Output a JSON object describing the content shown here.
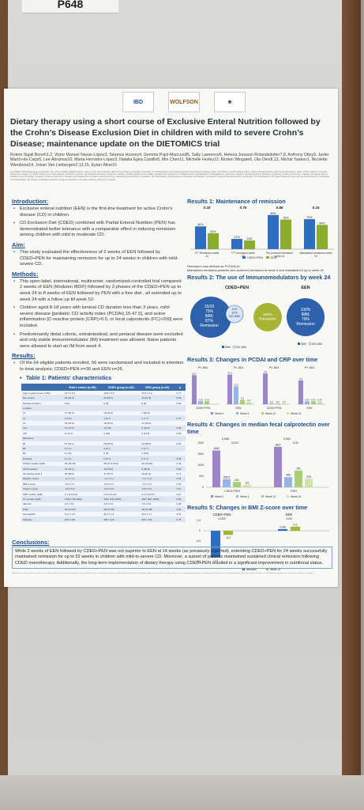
{
  "poster_tag": "P648",
  "logos": [
    "IBD",
    "WOLFSON",
    "★"
  ],
  "title": "Dietary therapy using a short course of Exclusive Enteral Nutrition followed by the Crohn’s Disease Exclusion Diet in children with mild to severe Crohn’s Disease; maintenance update on the DIETOMICS trial",
  "authors": "Rotem Sigall Boneh1,2, Victor Manuel Navas-López3, Séamus Hussey4, Gemma Pujol-Muncunill5, Sally Lawrence6, Helena Jonsson Rolandsdotter7,8, Anthony Otley9, Javier Martín-de-Carpi5, Lee Abramas10, Marta Herrador-López3, Natalia Egea Castillo5, Min Chen11, Michelle Hurley12, Kirsten Wingate6, Ola Olen8,13, Michal Yaakov1, Nicolette Wierdsma14, Johan Van Limbergen2,13,15, Eytan Wine16",
  "affiliations": "(1) Pediatric Gastroenterology and Nutrition Unit, The E. Wolfson Medical Center, Holon, Israel; (2) Amsterdam UMC Emma Children's Hospital, Amsterdam, The Netherlands; (3) Hospital Regional Universitario de Málaga, Spain; (4) Children's Health Ireland, Dublin, Ireland; (5) Hospital Sant Joan de Déu Barcelona, Spain; (6) BC Children's Hospital, Vancouver, Canada; (7) Sachs' Children and Youth Hospital, Stockholm, Sweden; (8) Karolinska Institutet, Stockholm, Sweden; (9) IWK Health Centre, Halifax, Canada; (10) Department of Clinical Science and Education, Södersjukhuset, Stockholm, Sweden; (11) Department of Pediatrics, University of Alberta, Edmonton, Canada; (12) Department of Pediatrics and Physiology, University of Alberta, Edmonton, Canada; (13) Department of Pediatric Gastroenterology, Hepatology and Nutrition, Amsterdam, The Netherlands; (14) Department of Nutrition and Dietetics, Amsterdam University Medical Centers, Amsterdam, The Netherlands; (15) Tytgat Institute for Liver and Intestinal Research, Amsterdam, The Netherlands; (16) Division of Pediatric Gastroenterology and Nutrition, University of Alberta, Edmonton, Canada.",
  "introduction": {
    "heading": "Introduction:",
    "bullets": [
      "Exclusive enteral nutrition (EEN) is the first-line treatment for active Crohn's disease (CD) in children.",
      "CD Exclusion Diet (CDED) combined with Partial Enteral Nutrition (PEN) has demonstrated better tolerance with a comparable effect in inducing remission among children with mild to moderate CD."
    ]
  },
  "aim": {
    "heading": "Aim:",
    "bullets": [
      "This study evaluated the effectiveness of 2 weeks of EEN followed by CDED+PEN for maintaining remission for up to 24 weeks in children with mild-severe CD ."
    ]
  },
  "methods": {
    "heading": "Methods:",
    "bullets": [
      "This open-label, international, multicenter, randomized-controlled trial compared 2 weeks of EEN (Modulen IBD®) followed by 3 phases of the CDED+PEN up to week 24  to 8 weeks of EEN followed by PEN with a free diet , all extended up to week 24 with a follow up till week 52.",
      "Children aged 8-18 years with luminal CD duration less than 3 years, mild-severe disease [pediatric CD activity index (PCDAI),15-47.5], and active inflammation [C-reactive protein (CRP)>0.5, or fecal calprotectin (FC)>200] were included.",
      "Predominantly distal colonic, extraintestinal, and perianal disease were excluded and only stable immunomodulator (IM) treatment was allowed. Naive patients were allowed to start an IM from week 4."
    ]
  },
  "results": {
    "heading": "Results:",
    "bullets": [
      "Of the 64 eligible patients enrolled, 56 were randomized and included in intention to treat analysis; CDED+PEN n=30 and EEN n=26."
    ],
    "table_caption": "Table 1: Patients' characteristics",
    "table_headers": [
      "",
      "Entire cohort (n=56)",
      "CDED group (n=30)",
      "EEN group (n=26)",
      "p"
    ],
    "table_rows": [
      [
        "Age in years (mean ± SD)",
        "13.7 ± 2.4",
        "13.8 ± 2.6",
        "13.6 ± 2.2",
        "0.77"
      ],
      [
        "Sex (male)",
        "36 (64.3)",
        "20 (66.7)",
        "16 (61.5)",
        "0.69"
      ],
      [
        "Disease duration",
        "0 (0)",
        "0 (0)",
        "0 (0)",
        "0.84"
      ],
      [
        "Location",
        "",
        "",
        "",
        ""
      ],
      [
        "L1",
        "17 (30.4)",
        "10 (33.3)",
        "7 (26.9)",
        ""
      ],
      [
        "L2",
        "3 (5.4)",
        "1 (3.3)",
        "2 (7.7)",
        "0.72"
      ],
      [
        "L3",
        "36 (64.3)",
        "19 (63.3)",
        "17 (65.4)",
        ""
      ],
      [
        "L4a",
        "21 (37.5)",
        "12 (40)",
        "9 (34.6)",
        "0.68"
      ],
      [
        "L4b",
        "6 (10.7)",
        "3 (10)",
        "3 (11.5)",
        "0.85"
      ],
      [
        "Behaviour",
        "",
        "",
        "",
        ""
      ],
      [
        "B1",
        "51 (91.1)",
        "28 (93.3)",
        "23 (88.5)",
        "0.53"
      ],
      [
        "B2",
        "4 (7.1)",
        "2 (6.7)",
        "2 (7.7)",
        ""
      ],
      [
        "B3",
        "1 (1.8)",
        "0 (0)",
        "1 (3.8)",
        ""
      ],
      [
        "Perianal",
        "4 (7.1)",
        "2 (6.7)",
        "2 (7.7)",
        "0.88"
      ],
      [
        "PCDAI median (IQR)",
        "35 (30-45)",
        "35 (27.5-42.5)",
        "40 (30-45)",
        "0.42"
      ],
      [
        "IM at baseline",
        "18 (32.1)",
        "10 (33.3)",
        "8 (30.8)",
        "0.84"
      ],
      [
        "IM starting week 4",
        "33 (58.9)",
        "17 (56.7)",
        "16 (61.5)",
        "0.71"
      ],
      [
        "Weight z-score",
        "-1.2 ± 1.1",
        "-1.1 ± 1.2",
        "-1.3 ± 1.0",
        "0.51"
      ],
      [
        "BMI z-score",
        "-1.0 ± 1.1",
        "-0.9 ± 1.2",
        "-1.1 ± 1.0",
        "0.54"
      ],
      [
        "Height z-score",
        "-0.6 ± 0.9",
        "-0.6 ± 0.9",
        "-0.6 ± 0.9",
        "0.97"
      ],
      [
        "CRP median (IQR)",
        "2.1 (0.9-5.2)",
        "2.0 (0.8-4.9)",
        "2.4 (1.0-5.5)",
        "0.61"
      ],
      [
        "FC median (IQR)",
        "1782 (706-2500)",
        "1662 (612-2500)",
        "1827 (807-2500)",
        "0.56"
      ],
      [
        "Albumin",
        "3.6 ± 0.5",
        "3.6 ± 0.5",
        "3.5 ± 0.5",
        "0.48"
      ],
      [
        "ESR",
        "36 (21-55)",
        "35 (20-52)",
        "38 (22-58)",
        "0.66"
      ],
      [
        "Hemoglobin",
        "11.1 ± 1.6",
        "11.2 ± 1.5",
        "11.0 ± 1.7",
        "0.67"
      ],
      [
        "Platelets",
        "440 ± 130",
        "435 ± 125",
        "446 ± 136",
        "0.75"
      ]
    ]
  },
  "r1": {
    "heading": "Results 1: Maintenance of remission",
    "groups": [
      "ITT Remission week 14",
      "ITT remission week 52",
      "Per protocol remission week 14",
      "Maintained remission week 24"
    ],
    "pvalues": [
      "0.18",
      "0.75",
      "0.85",
      "0.15"
    ],
    "cdedpen": [
      60,
      27,
      90,
      79
    ],
    "een": [
      42,
      23,
      78,
      64
    ],
    "value_labels_cded": [
      "60%",
      "27%",
      "90%",
      "79%"
    ],
    "value_labels_een": [
      "42%",
      "23%",
      "78%",
      "64%"
    ],
    "ylim": [
      0,
      100
    ],
    "legend": [
      "CDED+PEN",
      "EEN"
    ],
    "note1": "Remission was defined as PCDAI≤10.",
    "note2": "Maintained remission-patients who achieved remission at week 4 and maintained it up to week 24"
  },
  "r2": {
    "heading": "Results 2: The use of Immunomodulators by week 24",
    "cded_label": "CDED+PEN",
    "een_label": "EEN",
    "cded_text": "15/20\n75%\nIMM;\n87%\nRemission",
    "cded_small": "1/10\n10%\nNO IMM",
    "cded_green": "100%\nRemission",
    "een_text": "100%\nIMM;\n79%\nRemission",
    "legend": [
      "IMM",
      "NO IMM"
    ],
    "legend_een": [
      "IMM",
      "NO IMM"
    ]
  },
  "r3": {
    "heading": "Results 3: Changes in PCDAI and CRP over time",
    "pvalues": [
      "P<.001",
      "P<.001",
      "P<.001",
      "P<.001"
    ],
    "groups": [
      "CDED+PEN",
      "EEN",
      "CDED+PEN",
      "EEN"
    ],
    "bars": [
      [
        36.7,
        3.75,
        3.75,
        0
      ],
      [
        37.5,
        22.5,
        5.5,
        3.0
      ],
      [
        3.9,
        0.1,
        0.1,
        0.1
      ],
      [
        3.0,
        0.37,
        0.37,
        0.37
      ]
    ],
    "labels": [
      [
        "36.7",
        "3.75",
        "3.75",
        ""
      ],
      [
        "37.5",
        "22.5",
        "5.5",
        "3.0"
      ],
      [
        "3.9",
        "0.1",
        "0.1",
        "0.1"
      ],
      [
        "3.0",
        "0.37",
        "0.37",
        "0.37"
      ]
    ],
    "legend": [
      "Week 0",
      "Week 4",
      "Week 12",
      "Week 24"
    ]
  },
  "r4": {
    "heading": "Results 4: Changes in median fecal calprotectin over time",
    "pvalues": [
      "0.006",
      "0.012",
      "0.002",
      "0.01"
    ],
    "groups": [
      "CDED+PEN",
      "EEN"
    ],
    "values": [
      [
        1662,
        363.5,
        241,
        111
      ],
      [
        1827,
        456,
        751,
        376
      ]
    ],
    "labels": [
      [
        "1662",
        "363.5",
        "241",
        "111"
      ],
      [
        "1827",
        "456",
        "751",
        "376"
      ]
    ],
    "ylim": [
      0,
      2000
    ],
    "legend": [
      "Week 0",
      "Week 4",
      "Week 12",
      "Week 24"
    ]
  },
  "r5": {
    "heading": "Results 5: Changes in BMI Z-score over time",
    "groups": [
      "CDED+PEN",
      "EEN"
    ],
    "pvalues": [
      "0.003",
      "0.09"
    ],
    "values": [
      [
        -1.3,
        -0.2
      ],
      [
        0.08,
        0.2
      ]
    ],
    "labels": [
      [
        "-1.3",
        "-0.2"
      ],
      [
        "0.08",
        "0.2"
      ]
    ],
    "ylim": [
      -1.5,
      0.5
    ],
    "legend": [
      "Baseline",
      "Week 24"
    ]
  },
  "conclusions": {
    "heading": "Conclusions:",
    "text": "While 2 weeks of EEN followed by CDED+PEN was not superior to EEN at 14 weeks (as previously reported), extending CDED+PEN for 24 weeks successfully maintained remission for up to 52 weeks in children with mild-to-severe CD.  Moreover, a subset of patients maintained sustained clinical remission following CDED monotherapy. Additionally, the long-term implementation of dietary therapy using CDED+PEN resulted in a significant improvement in nutritional status."
  },
  "references": "References: Levine A, Wine E, Assa A, et al. Crohn's disease exclusion diet plus partial enteral nutrition induces sustained remission in a randomized controlled trial. Gastroenterology 2019;157:440-450. Sigall Boneh R, et al. Dietary therapies induce rapid response and remission in pediatric patients with active Crohn's disease. Clin Gastroenterol Hepatol 2021. Disclosures available on request.",
  "colors": {
    "cded": "#2e6ec2",
    "een": "#8bad2f",
    "accent": "#1b4f8a",
    "week0": "#9a86c8",
    "week4": "#97b5e3",
    "week12": "#a9cf75",
    "week24": "#cfe2a8"
  }
}
